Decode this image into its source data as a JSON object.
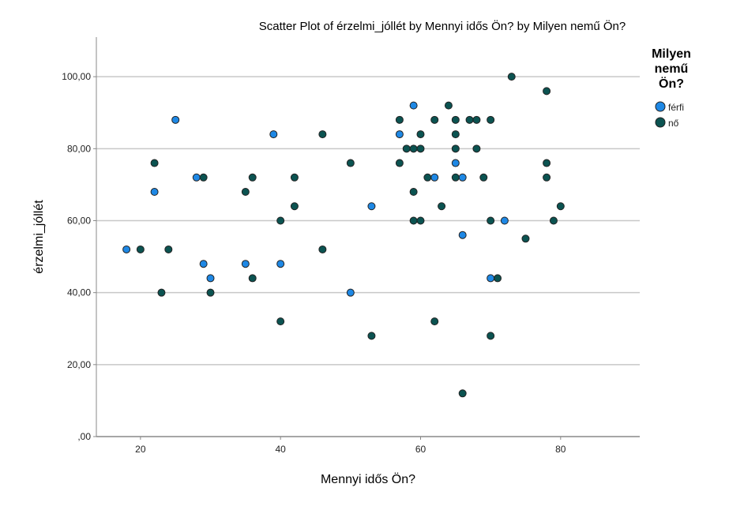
{
  "chart_data": {
    "type": "scatter",
    "title": "Scatter Plot of érzelmi_jóllét by Mennyi idős Ön? by Milyen nemű Ön?",
    "xlabel": "Mennyi idős Ön?",
    "ylabel": "érzelmi_jóllét",
    "xlim": [
      13.7,
      91.3
    ],
    "ylim": [
      0,
      111
    ],
    "xticks": [
      20,
      40,
      60,
      80
    ],
    "xtick_labels": [
      "20",
      "40",
      "60",
      "80"
    ],
    "yticks": [
      0,
      20,
      40,
      60,
      80,
      100
    ],
    "ytick_labels": [
      ",00",
      "20,00",
      "40,00",
      "60,00",
      "80,00",
      "100,00"
    ],
    "grid": "horizontal",
    "legend": {
      "title_lines": [
        "Milyen",
        "nemű",
        "Ön?"
      ],
      "placement": "right"
    },
    "series": [
      {
        "name": "férfi",
        "color": "#1e88e5",
        "points": [
          [
            25,
            88
          ],
          [
            39,
            84
          ],
          [
            28,
            72
          ],
          [
            22,
            68
          ],
          [
            18,
            52
          ],
          [
            29,
            48
          ],
          [
            35,
            48
          ],
          [
            40,
            48
          ],
          [
            30,
            44
          ],
          [
            50,
            40
          ],
          [
            59,
            92
          ],
          [
            57,
            84
          ],
          [
            65,
            76
          ],
          [
            62,
            72
          ],
          [
            66,
            72
          ],
          [
            53,
            64
          ],
          [
            72,
            60
          ],
          [
            66,
            56
          ],
          [
            70,
            44
          ]
        ]
      },
      {
        "name": "nő",
        "color": "#0b5351",
        "points": [
          [
            46,
            84
          ],
          [
            22,
            76
          ],
          [
            50,
            76
          ],
          [
            29,
            72
          ],
          [
            36,
            72
          ],
          [
            42,
            72
          ],
          [
            35,
            68
          ],
          [
            42,
            64
          ],
          [
            40,
            60
          ],
          [
            20,
            52
          ],
          [
            24,
            52
          ],
          [
            46,
            52
          ],
          [
            36,
            44
          ],
          [
            23,
            40
          ],
          [
            30,
            40
          ],
          [
            40,
            32
          ],
          [
            73,
            100
          ],
          [
            78,
            96
          ],
          [
            64,
            92
          ],
          [
            57,
            88
          ],
          [
            62,
            88
          ],
          [
            65,
            88
          ],
          [
            67,
            88
          ],
          [
            68,
            88
          ],
          [
            70,
            88
          ],
          [
            60,
            84
          ],
          [
            65,
            84
          ],
          [
            58,
            80
          ],
          [
            59,
            80
          ],
          [
            60,
            80
          ],
          [
            65,
            80
          ],
          [
            68,
            80
          ],
          [
            57,
            76
          ],
          [
            78,
            76
          ],
          [
            61,
            72
          ],
          [
            65,
            72
          ],
          [
            69,
            72
          ],
          [
            78,
            72
          ],
          [
            59,
            68
          ],
          [
            63,
            64
          ],
          [
            80,
            64
          ],
          [
            59,
            60
          ],
          [
            60,
            60
          ],
          [
            70,
            60
          ],
          [
            79,
            60
          ],
          [
            75,
            55
          ],
          [
            71,
            44
          ],
          [
            62,
            32
          ],
          [
            53,
            28
          ],
          [
            70,
            28
          ],
          [
            66,
            12
          ]
        ]
      }
    ]
  }
}
